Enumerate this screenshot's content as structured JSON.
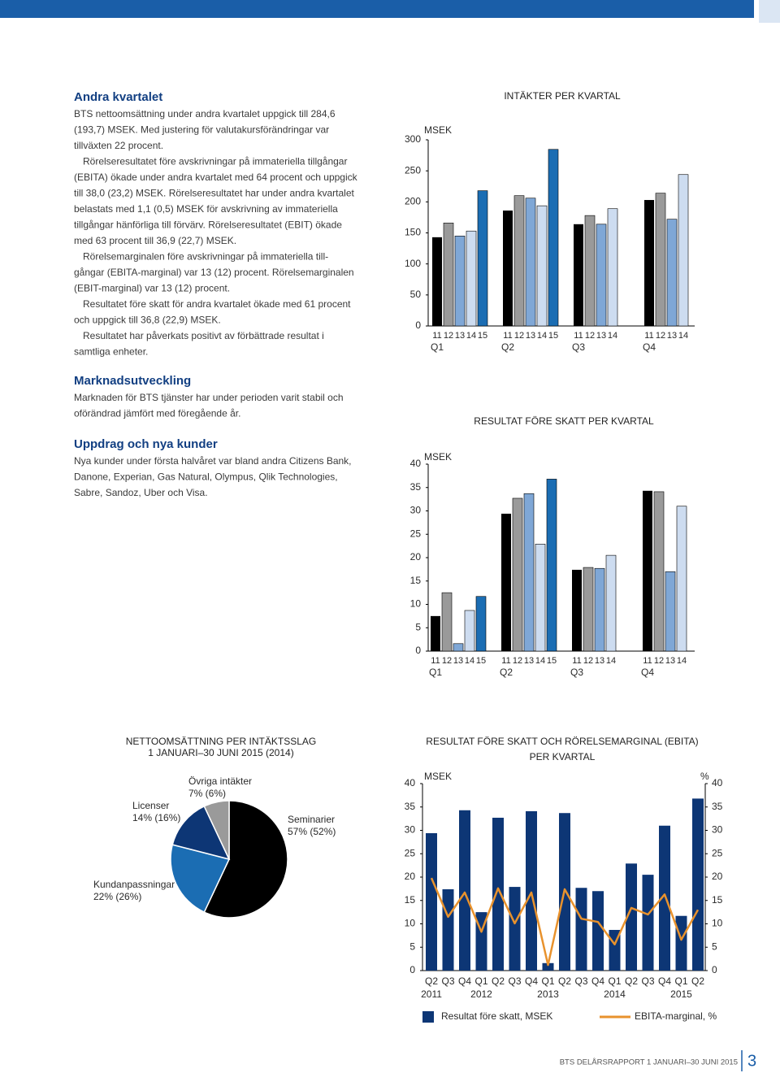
{
  "sections": [
    {
      "heading": "Andra kvartalet",
      "paragraphs": [
        [
          "BTS nettoomsättning under andra kvartalet uppgick till 284,6",
          "(193,7) MSEK. Med justering för valutakursförändringar var",
          "tillväxten 22 procent."
        ],
        [
          "Rörelseresultatet före avskrivningar på immateriella tillgångar",
          "(EBITA) ökade under andra kvartalet med 64 procent och uppgick",
          "till 38,0 (23,2) MSEK. Rörelseresultatet har under andra kvartalet",
          "belastats med 1,1 (0,5) MSEK för avskrivning av immateriella",
          "tillgångar hänförliga till förvärv. Rörelseresultatet (EBIT) ökade",
          "med 63 procent till 36,9 (22,7) MSEK."
        ],
        [
          "Rörelsemarginalen före avskrivningar på immateriella till-",
          "gångar (EBITA-marginal) var 13 (12) procent. Rörelsemarginalen",
          "(EBIT-marginal) var 13 (12) procent."
        ],
        [
          "Resultatet före skatt för andra kvartalet ökade med 61 procent",
          "och uppgick till 36,8 (22,9) MSEK."
        ],
        [
          "Resultatet har påverkats positivt av förbättrade resultat i",
          "samtliga enheter."
        ]
      ]
    },
    {
      "heading": "Marknadsutveckling",
      "paragraphs": [
        [
          "Marknaden för BTS tjänster har under perioden varit stabil och",
          "oförändrad jämfört med föregående år."
        ]
      ]
    },
    {
      "heading": "Uppdrag och nya kunder",
      "paragraphs": [
        [
          "Nya kunder under första halvåret var bland andra Citizens Bank,",
          "Danone, Experian, Gas Natural, Olympus, Qlik Technologies,",
          "Sabre, Sandoz, Uber och Visa."
        ]
      ]
    }
  ],
  "chart_data": [
    {
      "type": "grouped_bar",
      "title": "INTÄKTER PER KVARTAL",
      "y_label": "MSEK",
      "categories": [
        "Q1",
        "Q2",
        "Q3",
        "Q4"
      ],
      "series": [
        {
          "name": "11",
          "color": "#000000",
          "values": [
            143,
            186,
            164,
            203
          ]
        },
        {
          "name": "12",
          "color": "#9a9a9a",
          "values": [
            166,
            210,
            178,
            214
          ]
        },
        {
          "name": "13",
          "color": "#7fa7d6",
          "values": [
            145,
            206,
            164,
            172
          ]
        },
        {
          "name": "14",
          "color": "#cddcf0",
          "values": [
            153,
            193.7,
            189,
            244
          ]
        },
        {
          "name": "15",
          "color": "#1b6db3",
          "values": [
            218,
            284.6,
            null,
            null
          ]
        }
      ],
      "ylim": [
        0,
        300
      ],
      "yticks": [
        0,
        50,
        100,
        150,
        200,
        250,
        300
      ],
      "grid": false
    },
    {
      "type": "grouped_bar",
      "title": "RESULTAT FÖRE SKATT PER KVARTAL",
      "y_label": "MSEK",
      "categories": [
        "Q1",
        "Q2",
        "Q3",
        "Q4"
      ],
      "series": [
        {
          "name": "11",
          "color": "#000000",
          "values": [
            7.5,
            29.4,
            17.4,
            34.3
          ]
        },
        {
          "name": "12",
          "color": "#9a9a9a",
          "values": [
            12.5,
            32.7,
            17.9,
            34.1
          ]
        },
        {
          "name": "13",
          "color": "#7fa7d6",
          "values": [
            1.6,
            33.7,
            17.7,
            17.0
          ]
        },
        {
          "name": "14",
          "color": "#cddcf0",
          "values": [
            8.7,
            22.9,
            20.5,
            31.0
          ]
        },
        {
          "name": "15",
          "color": "#1b6db3",
          "values": [
            11.7,
            36.8,
            null,
            null
          ]
        }
      ],
      "ylim": [
        0,
        40
      ],
      "yticks": [
        0,
        5,
        10,
        15,
        20,
        25,
        30,
        35,
        40
      ],
      "grid": false
    },
    {
      "type": "pie",
      "title": "NETTOOMSÄTTNING PER INTÄKTSSLAG",
      "subtitle": "1 JANUARI–30 JUNI 2015 (2014)",
      "categories": [
        "Seminarier",
        "Kundanpassningar",
        "Licenser",
        "Övriga intäkter"
      ],
      "values": [
        57,
        22,
        14,
        7
      ],
      "value_labels": [
        "57% (52%)",
        "22% (26%)",
        "14% (16%)",
        "7% (6%)"
      ],
      "colors": [
        "#000000",
        "#1b6db3",
        "#0d3675",
        "#9a9a9a"
      ]
    },
    {
      "type": "bar_line",
      "title": [
        "RESULTAT FÖRE SKATT OCH RÖRELSEMARGINAL (EBITA)",
        "PER KVARTAL"
      ],
      "y_label": "MSEK",
      "y2_label": "%",
      "groups": [
        {
          "name": "2011",
          "categories": [
            "Q2",
            "Q3",
            "Q4"
          ]
        },
        {
          "name": "2012",
          "categories": [
            "Q1",
            "Q2",
            "Q3",
            "Q4"
          ]
        },
        {
          "name": "2013",
          "categories": [
            "Q1",
            "Q2",
            "Q3",
            "Q4"
          ]
        },
        {
          "name": "2014",
          "categories": [
            "Q1",
            "Q2",
            "Q3",
            "Q4"
          ]
        },
        {
          "name": "2015",
          "categories": [
            "Q1",
            "Q2"
          ]
        }
      ],
      "series": [
        {
          "name": "Resultat före skatt, MSEK",
          "color": "#0d3675",
          "values": [
            29.4,
            17.4,
            34.3,
            12.5,
            32.7,
            17.9,
            34.1,
            1.6,
            33.7,
            17.7,
            17.0,
            8.7,
            22.9,
            20.5,
            31.0,
            11.7,
            36.8
          ]
        },
        {
          "name": "EBITA-marginal, %",
          "color": "#e8922d",
          "axis": "y2",
          "values": [
            19.8,
            11.5,
            16.7,
            8.3,
            17.6,
            10.1,
            16.7,
            1.2,
            17.4,
            11.1,
            10.4,
            5.6,
            13.4,
            12.0,
            16.3,
            6.6,
            13
          ]
        }
      ],
      "ylim": [
        0,
        40
      ],
      "yticks": [
        0,
        5,
        10,
        15,
        20,
        25,
        30,
        35,
        40
      ],
      "y2lim": [
        0,
        40
      ],
      "y2ticks": [
        0,
        5,
        10,
        15,
        20,
        25,
        30,
        35,
        40
      ],
      "legend": "bottom",
      "grid": false
    }
  ],
  "footer": {
    "text": "BTS DELÅRSRAPPORT 1 JANUARI–30 JUNI 2015",
    "page": "3"
  }
}
